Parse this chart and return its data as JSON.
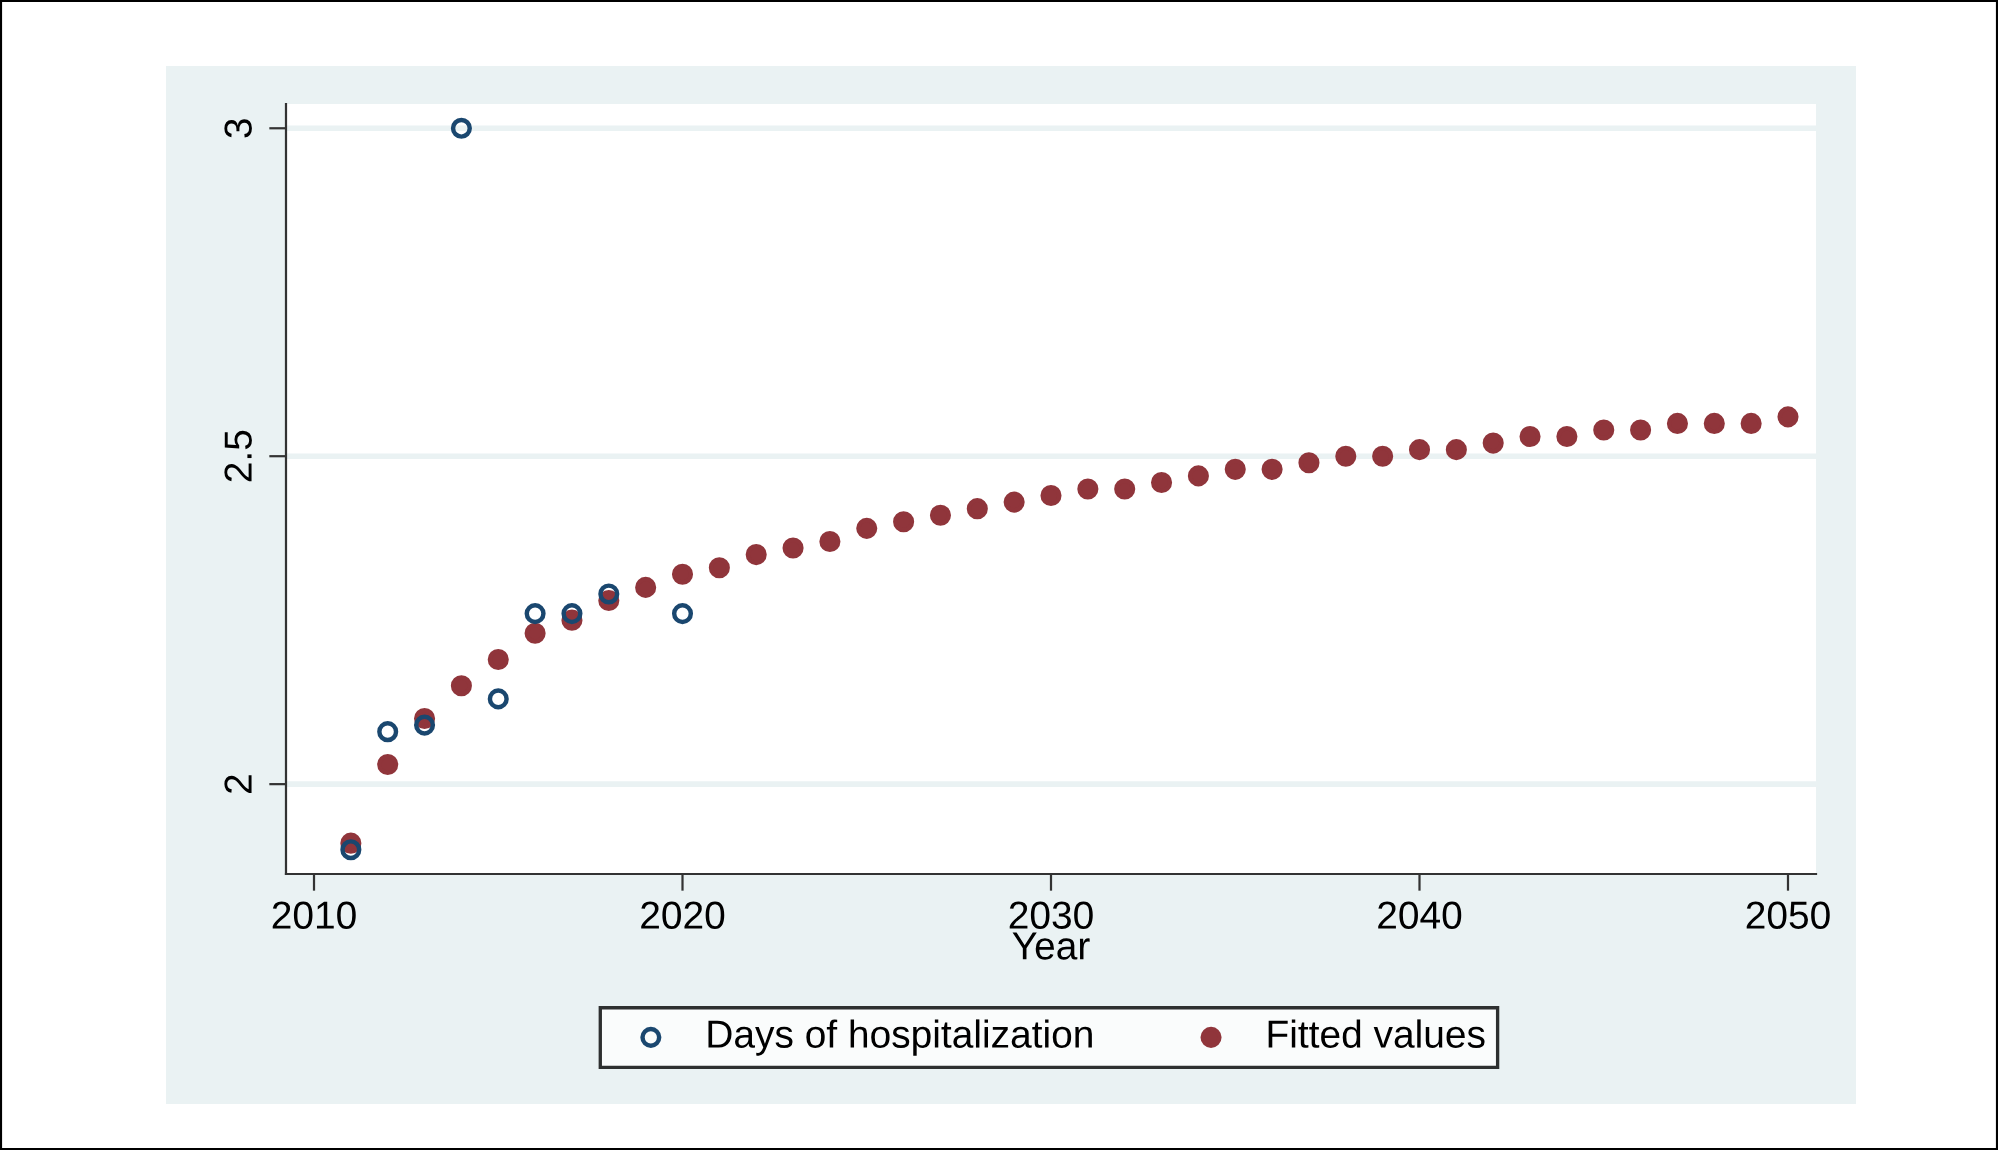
{
  "chart_data": {
    "type": "scatter",
    "xlabel": "Year",
    "marker": "circle",
    "legend": "bottom",
    "grid": "y",
    "xlim": [
      2009.24,
      2050.76
    ],
    "ylim": [
      1.863,
      3.037
    ],
    "xticks": [
      2010,
      2020,
      2030,
      2040,
      2050
    ],
    "yticks": [
      2,
      2.5,
      3
    ],
    "series": [
      {
        "name": "Days of hospitalization",
        "color": "#1a476f",
        "x": [
          2011,
          2012,
          2013,
          2014,
          2015,
          2016,
          2017,
          2018,
          2020
        ],
        "values": [
          1.9,
          2.08,
          2.09,
          3.0,
          2.13,
          2.26,
          2.26,
          2.29,
          2.26
        ]
      },
      {
        "name": "Fitted values",
        "color": "#90353b",
        "x": [
          2011,
          2012,
          2013,
          2014,
          2015,
          2016,
          2017,
          2018,
          2019,
          2020,
          2021,
          2022,
          2023,
          2024,
          2025,
          2026,
          2027,
          2028,
          2029,
          2030,
          2031,
          2032,
          2033,
          2034,
          2035,
          2036,
          2037,
          2038,
          2039,
          2040,
          2041,
          2042,
          2043,
          2044,
          2045,
          2046,
          2047,
          2048,
          2049,
          2050
        ],
        "values": [
          1.91,
          2.03,
          2.1,
          2.15,
          2.19,
          2.23,
          2.25,
          2.28,
          2.3,
          2.32,
          2.33,
          2.35,
          2.36,
          2.37,
          2.39,
          2.4,
          2.41,
          2.42,
          2.43,
          2.44,
          2.45,
          2.45,
          2.46,
          2.47,
          2.48,
          2.48,
          2.49,
          2.5,
          2.5,
          2.51,
          2.51,
          2.52,
          2.53,
          2.53,
          2.54,
          2.54,
          2.55,
          2.55,
          2.55,
          2.56
        ]
      }
    ]
  }
}
